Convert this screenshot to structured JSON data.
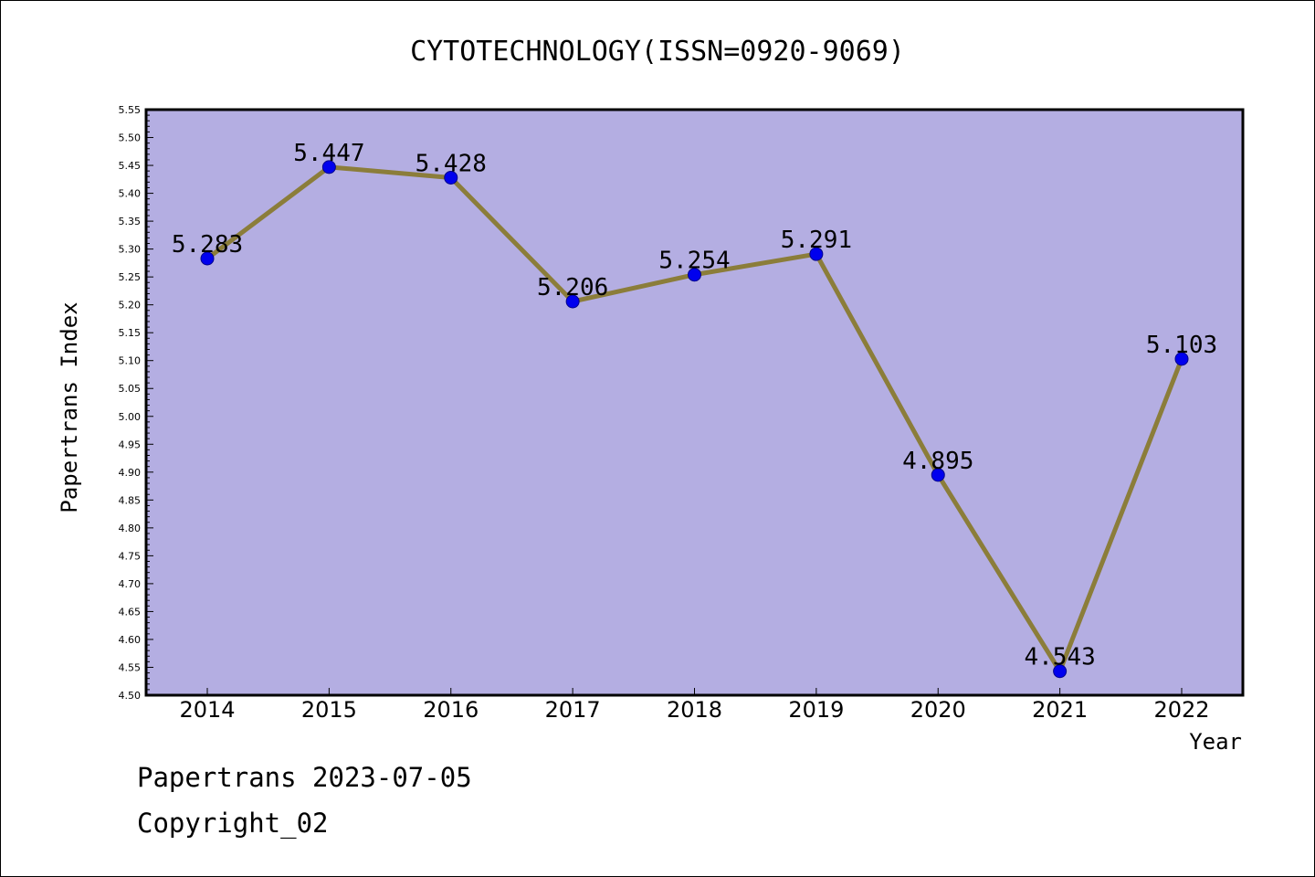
{
  "footer": {
    "line1": "Papertrans 2023-07-05",
    "line2": "Copyright_02"
  },
  "colors": {
    "plot_background": "#b4aee2",
    "line": "#8b7d3a",
    "marker": "#0000ee",
    "marker_stroke": "#00008b"
  },
  "chart_data": {
    "type": "line",
    "title": "CYTOTECHNOLOGY(ISSN=0920-9069)",
    "xlabel": "Year",
    "ylabel": "Papertrans Index",
    "categories": [
      "2014",
      "2015",
      "2016",
      "2017",
      "2018",
      "2019",
      "2020",
      "2021",
      "2022"
    ],
    "series": [
      {
        "values": [
          5.283,
          5.447,
          5.428,
          5.206,
          5.254,
          5.291,
          4.895,
          4.543,
          5.103
        ]
      }
    ],
    "data_labels": [
      "5.283",
      "5.447",
      "5.428",
      "5.206",
      "5.254",
      "5.291",
      "4.895",
      "4.543",
      "5.103"
    ],
    "ylim": [
      4.5,
      5.55
    ],
    "yticks": [
      "4.50",
      "4.55",
      "4.60",
      "4.65",
      "4.70",
      "4.75",
      "4.80",
      "4.85",
      "4.90",
      "4.95",
      "5.00",
      "5.05",
      "5.10",
      "5.15",
      "5.20",
      "5.25",
      "5.30",
      "5.35",
      "5.40",
      "5.45",
      "5.50",
      "5.55"
    ],
    "grid": false,
    "legend": "none"
  }
}
